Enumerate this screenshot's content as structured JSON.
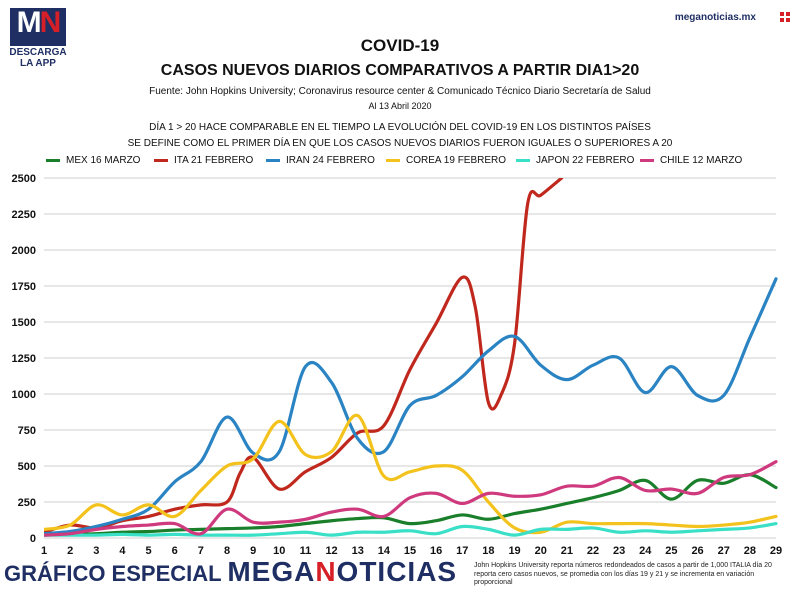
{
  "header": {
    "logo_text_main": "M",
    "logo_text_accent": "N",
    "logo_caption_line1": "DESCARGA",
    "logo_caption_line2": "LA APP",
    "site": "meganoticias.mx"
  },
  "colors": {
    "brand_navy": "#1f2f63",
    "brand_red": "#d61f26"
  },
  "chart_data": {
    "type": "line",
    "title": "COVID-19",
    "subtitle": "CASOS NUEVOS DIARIOS COMPARATIVOS A PARTIR DIA1>20",
    "source": "Fuente: John Hopkins University; Coronavirus resource center & Comunicado Técnico Diario Secretaría de Salud",
    "date": "Al 13 Abril 2020",
    "description_line1": "DÍA 1 > 20 HACE COMPARABLE EN EL TIEMPO LA EVOLUCIÓN DEL COVID-19 EN LOS DISTINTOS PAÍSES",
    "description_line2": "SE DEFINE COMO EL PRIMER DÍA EN QUE LOS CASOS NUEVOS DIARIOS FUERON IGUALES O SUPERIORES A 20",
    "x": [
      1,
      2,
      3,
      4,
      5,
      6,
      7,
      8,
      9,
      10,
      11,
      12,
      13,
      14,
      15,
      16,
      17,
      18,
      19,
      20,
      21,
      22,
      23,
      24,
      25,
      26,
      27,
      28,
      29
    ],
    "xlim": [
      1,
      29
    ],
    "ylim": [
      0,
      2500
    ],
    "yticks": [
      "0",
      "250",
      "500",
      "750",
      "1000",
      "1250",
      "1500",
      "1750",
      "2000",
      "2250",
      "2500"
    ],
    "xticks": [
      "1",
      "2",
      "3",
      "4",
      "5",
      "6",
      "7",
      "8",
      "9",
      "10",
      "11",
      "12",
      "13",
      "14",
      "15",
      "16",
      "17",
      "18",
      "19",
      "20",
      "21",
      "22",
      "23",
      "24",
      "25",
      "26",
      "27",
      "28",
      "29"
    ],
    "grid": true,
    "legend_position": "top",
    "series": [
      {
        "name": "MEX 16 MARZO",
        "color": "#1a7f2a",
        "x": [
          1,
          2,
          3,
          4,
          5,
          6,
          7,
          8,
          9,
          10,
          11,
          12,
          13,
          14,
          15,
          16,
          17,
          18,
          19,
          20,
          21,
          22,
          23,
          24,
          25,
          26,
          27,
          28,
          29
        ],
        "values": [
          20,
          25,
          30,
          40,
          45,
          55,
          60,
          65,
          70,
          80,
          100,
          120,
          135,
          140,
          100,
          120,
          160,
          130,
          170,
          200,
          240,
          280,
          330,
          400,
          270,
          400,
          380,
          440,
          350
        ]
      },
      {
        "name": "ITA 21 FEBRERO",
        "color": "#c0281d",
        "x": [
          1,
          2,
          3,
          4,
          5,
          6,
          7,
          8,
          8.5,
          9,
          10,
          11,
          12,
          13,
          14,
          15,
          16,
          17,
          17.5,
          18,
          18.5,
          19,
          19.5,
          20,
          20.8
        ],
        "values": [
          40,
          90,
          70,
          120,
          150,
          200,
          230,
          250,
          450,
          560,
          340,
          460,
          560,
          730,
          780,
          1170,
          1490,
          1810,
          1600,
          940,
          1000,
          1350,
          2320,
          2380,
          2500
        ]
      },
      {
        "name": "IRAN 24 FEBRERO",
        "color": "#2a84c3",
        "x": [
          1,
          2,
          3,
          4,
          5,
          6,
          7,
          8,
          9,
          10,
          11,
          12,
          13,
          14,
          15,
          16,
          17,
          18,
          19,
          20,
          21,
          22,
          23,
          24,
          25,
          26,
          27,
          28,
          29
        ],
        "values": [
          30,
          45,
          80,
          130,
          200,
          390,
          530,
          840,
          590,
          600,
          1190,
          1080,
          690,
          600,
          920,
          990,
          1120,
          1300,
          1400,
          1200,
          1100,
          1200,
          1250,
          1010,
          1190,
          990,
          990,
          1390,
          1800
        ]
      },
      {
        "name": "COREA 19 FEBRERO",
        "color": "#f3c21c",
        "x": [
          1,
          2,
          3,
          4,
          5,
          6,
          7,
          8,
          9,
          10,
          11,
          12,
          13,
          14,
          15,
          16,
          17,
          18,
          19,
          20,
          21,
          22,
          23,
          24,
          25,
          26,
          27,
          28,
          29
        ],
        "values": [
          60,
          90,
          230,
          160,
          230,
          150,
          330,
          500,
          550,
          810,
          580,
          600,
          850,
          430,
          460,
          500,
          470,
          250,
          70,
          40,
          110,
          100,
          100,
          100,
          90,
          80,
          90,
          110,
          150
        ]
      },
      {
        "name": "JAPON 22 FEBRERO",
        "color": "#39dfc6",
        "x": [
          1,
          2,
          3,
          4,
          5,
          6,
          7,
          8,
          9,
          10,
          11,
          12,
          13,
          14,
          15,
          16,
          17,
          18,
          19,
          20,
          21,
          22,
          23,
          24,
          25,
          26,
          27,
          28,
          29
        ],
        "values": [
          20,
          20,
          20,
          25,
          20,
          25,
          20,
          20,
          20,
          30,
          40,
          20,
          40,
          40,
          50,
          30,
          80,
          60,
          20,
          60,
          60,
          70,
          40,
          50,
          40,
          50,
          60,
          70,
          100
        ]
      },
      {
        "name": "CHILE 12 MARZO",
        "color": "#cf3a7e",
        "x": [
          1,
          2,
          3,
          4,
          5,
          6,
          7,
          8,
          9,
          10,
          11,
          12,
          13,
          14,
          15,
          16,
          17,
          18,
          19,
          20,
          21,
          22,
          23,
          24,
          25,
          26,
          27,
          28,
          29
        ],
        "values": [
          20,
          30,
          60,
          80,
          90,
          100,
          30,
          200,
          110,
          110,
          130,
          180,
          200,
          150,
          280,
          310,
          240,
          310,
          290,
          300,
          360,
          360,
          420,
          330,
          340,
          310,
          420,
          440,
          530
        ]
      }
    ]
  },
  "footer": {
    "brand_prefix": "GRÁFICO ESPECIAL",
    "brand_main_a": "MEGA",
    "brand_main_b": "N",
    "brand_main_c": "OTICIAS",
    "note": "John Hopkins University reporta números redondeados de casos a partir de 1,000 ITALIA día 20 reporta cero casos nuevos, se promedia con los días 19 y 21 y se incrementa en variación proporcional"
  }
}
